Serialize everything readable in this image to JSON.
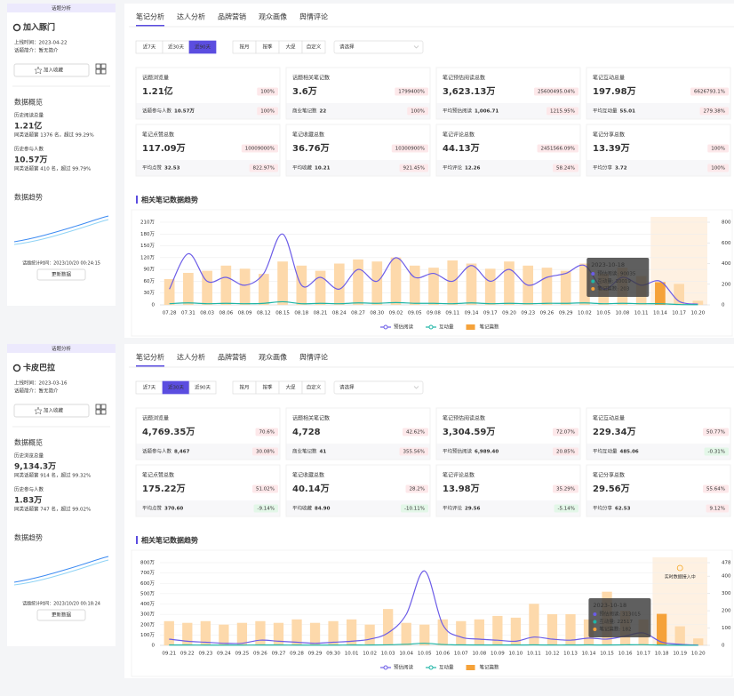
{
  "panels": [
    {
      "sidebar": {
        "badge": "话题分析",
        "name": "加入豚门",
        "online": "上线时间：2023-04-22",
        "intro": "话题简介：暂无简介",
        "follow_btn": "加入收藏",
        "overview_title": "数据概览",
        "stats": [
          {
            "label": "历史阅读总量",
            "value": "1.21亿",
            "note": "同类话题第 1376 名，超过 99.29%"
          },
          {
            "label": "历史参与人数",
            "value": "10.57万",
            "note": "同类话题第 410 名，超过 99.79%"
          }
        ],
        "trend_title": "数据趋势",
        "update_time": "话题统计时间：2023/10/20 00:24:15",
        "refresh_btn": "更新数据"
      },
      "tabs": [
        "笔记分析",
        "达人分析",
        "品牌营销",
        "观众画像",
        "舆情评论"
      ],
      "filters": {
        "periods": [
          "近7天",
          "近30天",
          "近90天"
        ],
        "active_period": 2,
        "ranges": [
          "按月",
          "按季",
          "大促",
          "自定义"
        ],
        "select_placeholder": "请选择"
      },
      "metrics": [
        {
          "title": "话题浏览量",
          "value": "1.21亿",
          "badge": "100%",
          "sub_label": "话题参与人数",
          "sub_value": "10.57万",
          "sub_badge": "100%"
        },
        {
          "title": "话题相关笔记数",
          "value": "3.6万",
          "badge": "1799400%",
          "sub_label": "商业笔记数",
          "sub_value": "22",
          "sub_badge": "100%"
        },
        {
          "title": "笔记预估阅读总数",
          "value": "3,623.13万",
          "badge": "25600495.04%",
          "sub_label": "平均预估阅读",
          "sub_value": "1,006.71",
          "sub_badge": "1215.95%"
        },
        {
          "title": "笔记互动总量",
          "value": "197.98万",
          "badge": "6626793.1%",
          "sub_label": "平均互动量",
          "sub_value": "55.01",
          "sub_badge": "279.38%"
        },
        {
          "title": "笔记点赞总数",
          "value": "117.09万",
          "badge": "10009000%",
          "sub_label": "平均点赞",
          "sub_value": "32.53",
          "sub_badge": "822.97%"
        },
        {
          "title": "笔记收藏总数",
          "value": "36.76万",
          "badge": "10300900%",
          "sub_label": "平均收藏",
          "sub_value": "10.21",
          "sub_badge": "921.45%"
        },
        {
          "title": "笔记评论总数",
          "value": "44.13万",
          "badge": "2451566.09%",
          "sub_label": "平均评论",
          "sub_value": "12.26",
          "sub_badge": "58.24%"
        },
        {
          "title": "笔记分享总数",
          "value": "13.39万",
          "badge": "100%",
          "sub_label": "平均分享",
          "sub_value": "3.72",
          "sub_badge": "100%"
        }
      ],
      "chart": {
        "type": "combo",
        "title": "相关笔记数据趋势",
        "categories": [
          "07.28",
          "07.31",
          "08.03",
          "08.06",
          "08.09",
          "08.12",
          "08.15",
          "08.18",
          "08.21",
          "08.24",
          "08.27",
          "08.30",
          "09.02",
          "09.05",
          "09.08",
          "09.11",
          "09.14",
          "09.17",
          "09.20",
          "09.23",
          "09.26",
          "09.29",
          "10.02",
          "10.05",
          "10.08",
          "10.11",
          "10.14",
          "10.17",
          "10.20"
        ],
        "series": [
          {
            "name": "预估阅读",
            "type": "line",
            "color": "#6c5ce7",
            "values": [
              40,
              130,
              60,
              70,
              50,
              80,
              180,
              50,
              70,
              40,
              90,
              60,
              120,
              70,
              80,
              60,
              100,
              60,
              90,
              50,
              70,
              80,
              100,
              40,
              70,
              50,
              60,
              9,
              2
            ]
          },
          {
            "name": "互动量",
            "type": "line",
            "color": "#1fb5a6",
            "values": [
              3,
              5,
              3,
              4,
              3,
              4,
              8,
              3,
              4,
              3,
              5,
              4,
              6,
              4,
              4,
              3,
              5,
              3,
              4,
              3,
              4,
              4,
              5,
              3,
              4,
              3,
              3,
              1,
              0.5
            ]
          },
          {
            "name": "笔记篇数",
            "type": "bar",
            "axis": "y2",
            "color": "#fdd9ab",
            "values": [
              250,
              310,
              330,
              380,
              350,
              300,
              420,
              380,
              330,
              400,
              440,
              420,
              460,
              380,
              360,
              430,
              400,
              350,
              420,
              380,
              360,
              330,
              400,
              300,
              360,
              280,
              220,
              203,
              40
            ]
          }
        ],
        "ylim": [
          0,
          210
        ],
        "yticks": [
          0,
          {
            "value": 30,
            "label": "30万"
          },
          {
            "value": 60,
            "label": "60万"
          },
          {
            "value": 90,
            "label": "90万"
          },
          {
            "value": 120,
            "label": "120万"
          },
          {
            "value": 150,
            "label": "150万"
          },
          {
            "value": 180,
            "label": "180万"
          },
          {
            "value": 210,
            "label": "210万"
          }
        ],
        "y2lim": [
          0,
          800
        ],
        "y2ticks": [
          0,
          200,
          400,
          600,
          800
        ],
        "grid": true,
        "tooltip": {
          "date": "2023-10-18",
          "items": [
            "预估阅读: 90035",
            "互动量: 10019",
            "笔记篇数: 203"
          ]
        }
      }
    },
    {
      "sidebar": {
        "badge": "话题分析",
        "name": "卡皮巴拉",
        "online": "上线时间：2023-03-16",
        "intro": "话题简介：暂无简介",
        "follow_btn": "加入收藏",
        "overview_title": "数据概览",
        "stats": [
          {
            "label": "历史浏览总量",
            "value": "9,134.3万",
            "note": "同类话题第 914 名，超过 99.32%"
          },
          {
            "label": "历史参与人数",
            "value": "1.83万",
            "note": "同类话题第 747 名，超过 99.02%"
          }
        ],
        "trend_title": "数据趋势",
        "update_time": "话题统计时间：2023/10/20 00:18:24",
        "refresh_btn": "更新数据"
      },
      "tabs": [
        "笔记分析",
        "达人分析",
        "品牌营销",
        "观众画像",
        "舆情评论"
      ],
      "filters": {
        "periods": [
          "近7天",
          "近30天",
          "近90天"
        ],
        "active_period": 1,
        "ranges": [
          "按月",
          "按季",
          "大促",
          "自定义"
        ],
        "select_placeholder": "请选择"
      },
      "metrics": [
        {
          "title": "话题浏览量",
          "value": "4,769.35万",
          "badge": "70.6%",
          "sub_label": "话题参与人数",
          "sub_value": "8,467",
          "sub_badge": "30.08%"
        },
        {
          "title": "话题相关笔记数",
          "value": "4,728",
          "badge": "42.62%",
          "sub_label": "商业笔记数",
          "sub_value": "41",
          "sub_badge": "355.56%"
        },
        {
          "title": "笔记预估阅读总数",
          "value": "3,304.59万",
          "badge": "72.07%",
          "sub_label": "平均预估阅读",
          "sub_value": "6,989.40",
          "sub_badge": "20.85%"
        },
        {
          "title": "笔记互动总量",
          "value": "229.34万",
          "badge": "50.77%",
          "sub_label": "平均互动量",
          "sub_value": "485.06",
          "sub_badge": "-0.31%"
        },
        {
          "title": "笔记点赞总数",
          "value": "175.22万",
          "badge": "51.02%",
          "sub_label": "平均点赞",
          "sub_value": "370.60",
          "sub_badge": "-9.14%"
        },
        {
          "title": "笔记收藏总数",
          "value": "40.14万",
          "badge": "28.2%",
          "sub_label": "平均收藏",
          "sub_value": "84.90",
          "sub_badge": "-10.11%"
        },
        {
          "title": "笔记评论总数",
          "value": "13.98万",
          "badge": "35.29%",
          "sub_label": "平均评论",
          "sub_value": "29.56",
          "sub_badge": "-5.14%"
        },
        {
          "title": "笔记分享总数",
          "value": "29.56万",
          "badge": "55.64%",
          "sub_label": "平均分享",
          "sub_value": "62.53",
          "sub_badge": "9.12%"
        }
      ],
      "chart": {
        "type": "combo",
        "title": "相关笔记数据趋势",
        "categories": [
          "09.21",
          "09.22",
          "09.23",
          "09.24",
          "09.25",
          "09.26",
          "09.27",
          "09.28",
          "09.29",
          "09.30",
          "10.01",
          "10.02",
          "10.03",
          "10.04",
          "10.05",
          "10.06",
          "10.07",
          "10.08",
          "10.09",
          "10.10",
          "10.11",
          "10.12",
          "10.13",
          "10.14",
          "10.15",
          "10.16",
          "10.17",
          "10.18",
          "10.19",
          "10.20"
        ],
        "series": [
          {
            "name": "预估阅读",
            "type": "line",
            "color": "#6c5ce7",
            "values": [
              60,
              40,
              30,
              20,
              20,
              50,
              40,
              30,
              20,
              30,
              40,
              60,
              120,
              300,
              720,
              200,
              80,
              60,
              50,
              40,
              80,
              60,
              50,
              70,
              60,
              90,
              120,
              31.3,
              10,
              2
            ]
          },
          {
            "name": "互动量",
            "type": "line",
            "color": "#1fb5a6",
            "values": [
              3,
              3,
              2,
              2,
              2,
              3,
              3,
              2,
              2,
              2,
              3,
              3,
              5,
              10,
              20,
              8,
              4,
              3,
              3,
              3,
              4,
              3,
              3,
              4,
              3,
              5,
              6,
              2.25,
              1,
              0.5
            ]
          },
          {
            "name": "笔记篇数",
            "type": "bar",
            "axis": "y2",
            "color": "#fdd9ab",
            "values": [
              140,
              130,
              140,
              120,
              130,
              140,
              130,
              150,
              130,
              140,
              150,
              120,
              210,
              130,
              120,
              150,
              140,
              150,
              170,
              160,
              240,
              180,
              180,
              150,
              310,
              200,
              150,
              182,
              110,
              40
            ]
          }
        ],
        "ylim": [
          0,
          800
        ],
        "yticks": [
          0,
          {
            "value": 100,
            "label": "100万"
          },
          {
            "value": 200,
            "label": "200万"
          },
          {
            "value": 300,
            "label": "300万"
          },
          {
            "value": 400,
            "label": "400万"
          },
          {
            "value": 500,
            "label": "500万"
          },
          {
            "value": 600,
            "label": "600万"
          },
          {
            "value": 700,
            "label": "700万"
          },
          {
            "value": 800,
            "label": "800万"
          }
        ],
        "y2lim": [
          0,
          478
        ],
        "y2ticks": [
          0,
          100,
          200,
          300,
          400,
          478
        ],
        "grid": true,
        "annotation": "实时数据接入中",
        "tooltip": {
          "date": "2023-10-18",
          "items": [
            "预估阅读: 313015",
            "互动量: 22517",
            "笔记篇数: 182"
          ]
        }
      }
    }
  ]
}
